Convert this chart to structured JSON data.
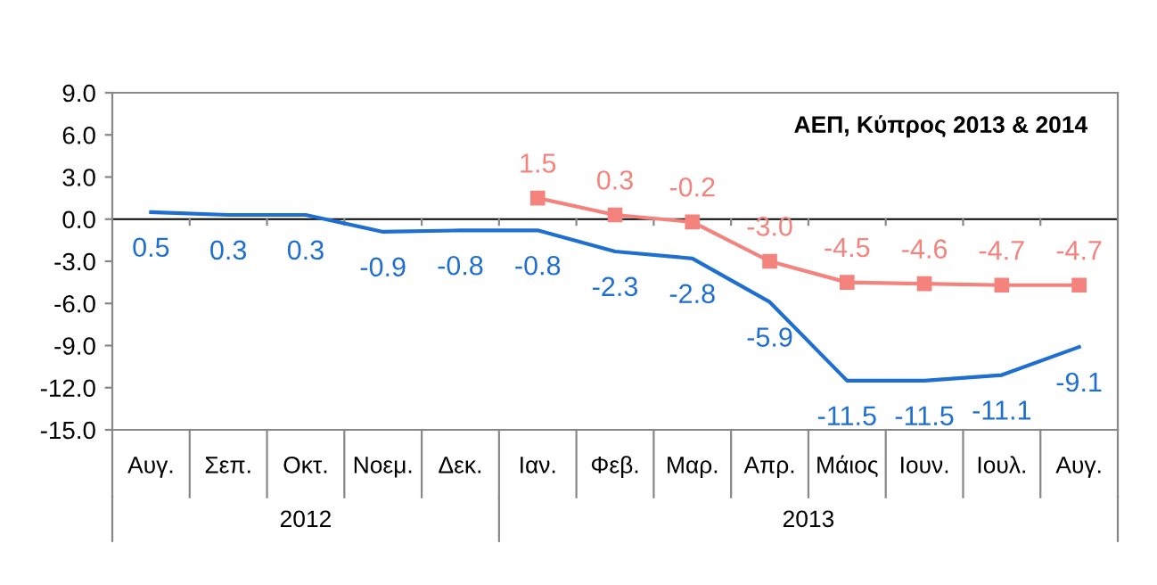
{
  "chart_data": {
    "type": "line",
    "title": "ΑΕΠ, Κύπρος 2013 & 2014",
    "categories": [
      "Αυγ.",
      "Σεπ.",
      "Οκτ.",
      "Νοεμ.",
      "Δεκ.",
      "Ιαν.",
      "Φεβ.",
      "Μαρ.",
      "Απρ.",
      "Μάιος",
      "Ιουν.",
      "Ιουλ.",
      "Αυγ."
    ],
    "series": [
      {
        "color": "#1f6fd0",
        "marker": "none",
        "values": [
          0.5,
          0.3,
          0.3,
          -0.9,
          -0.8,
          -0.8,
          -2.3,
          -2.8,
          -5.9,
          -11.5,
          -11.5,
          -11.1,
          -9.1
        ],
        "value_labels": [
          "0.5",
          "0.3",
          "0.3",
          "-0.9",
          "-0.8",
          "-0.8",
          "-2.3",
          "-2.8",
          "-5.9",
          "-11.5",
          "-11.5",
          "-11.1",
          "-9.1"
        ]
      },
      {
        "color": "#f4837d",
        "marker": "square",
        "values": [
          null,
          null,
          null,
          null,
          null,
          1.5,
          0.3,
          -0.2,
          -3.0,
          -4.5,
          -4.6,
          -4.7,
          -4.7
        ],
        "value_labels": [
          null,
          null,
          null,
          null,
          null,
          "1.5",
          "0.3",
          "-0.2",
          "-3.0",
          "-4.5",
          "-4.6",
          "-4.7",
          "-4.7"
        ]
      }
    ],
    "ylim": [
      -15,
      9
    ],
    "yticks": [
      {
        "value": 9,
        "label": "9.0"
      },
      {
        "value": 6,
        "label": "6.0"
      },
      {
        "value": 3,
        "label": "3.0"
      },
      {
        "value": 0,
        "label": "0.0"
      },
      {
        "value": -3,
        "label": "-3.0"
      },
      {
        "value": -6,
        "label": "-6.0"
      },
      {
        "value": -9,
        "label": "-9.0"
      },
      {
        "value": -12,
        "label": "-12.0"
      },
      {
        "value": -15,
        "label": "-15.0"
      }
    ],
    "annotations": [
      "2012",
      "2013"
    ]
  }
}
